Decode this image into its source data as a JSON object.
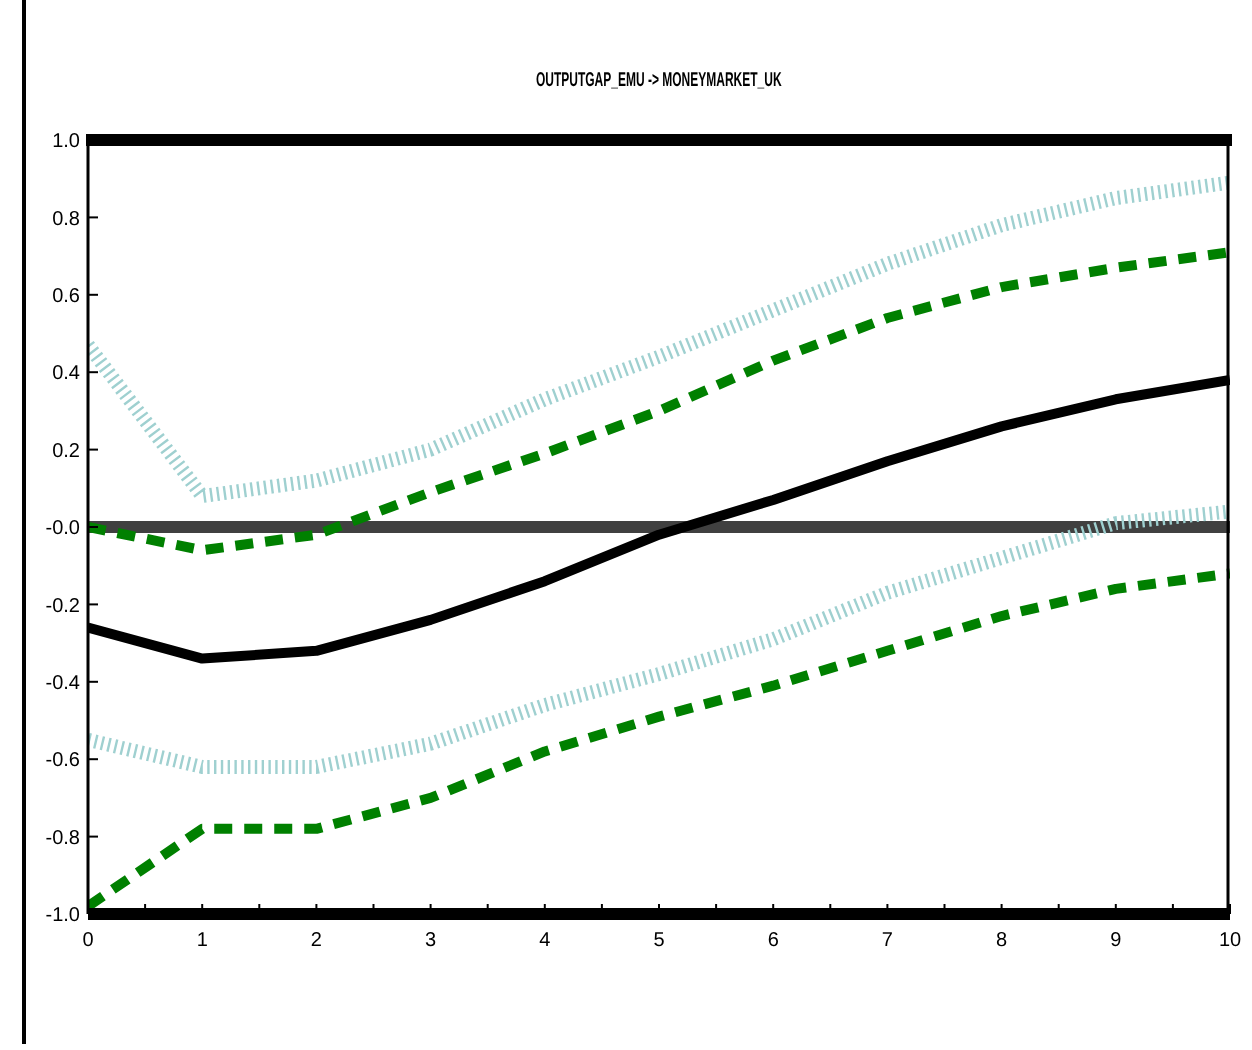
{
  "chart_data": {
    "type": "line",
    "title": "OUTPUTGAP_EMU -> MONEYMARKET_UK",
    "x": [
      0,
      1,
      2,
      3,
      4,
      5,
      6,
      7,
      8,
      9,
      10
    ],
    "series": [
      {
        "color": "#000000",
        "line_style": "solid",
        "values": [
          -0.26,
          -0.34,
          -0.32,
          -0.24,
          -0.14,
          -0.02,
          0.07,
          0.17,
          0.26,
          0.33,
          0.38
        ]
      },
      {
        "color": "#008000",
        "line_style": "dashed",
        "values": [
          0.0,
          -0.06,
          -0.02,
          0.09,
          0.19,
          0.3,
          0.43,
          0.54,
          0.62,
          0.67,
          0.71
        ]
      },
      {
        "color": "#008000",
        "line_style": "dashed",
        "values": [
          -0.98,
          -0.78,
          -0.78,
          -0.7,
          -0.58,
          -0.49,
          -0.41,
          -0.32,
          -0.23,
          -0.16,
          -0.12
        ]
      },
      {
        "color": "#9fd0d0",
        "line_style": "dotted",
        "values": [
          0.47,
          0.08,
          0.12,
          0.2,
          0.33,
          0.44,
          0.56,
          0.68,
          0.78,
          0.85,
          0.89
        ]
      },
      {
        "color": "#9fd0d0",
        "line_style": "dotted",
        "values": [
          -0.55,
          -0.62,
          -0.62,
          -0.56,
          -0.46,
          -0.38,
          -0.29,
          -0.17,
          -0.08,
          0.01,
          0.04
        ]
      }
    ],
    "xlim": [
      0,
      10
    ],
    "xticks": [
      0,
      {
        "value": 0.5,
        "label": null
      },
      1,
      {
        "value": 1.5,
        "label": null
      },
      2,
      {
        "value": 2.5,
        "label": null
      },
      3,
      {
        "value": 3.5,
        "label": null
      },
      4,
      {
        "value": 4.5,
        "label": null
      },
      5,
      {
        "value": 5.5,
        "label": null
      },
      6,
      {
        "value": 6.5,
        "label": null
      },
      7,
      {
        "value": 7.5,
        "label": null
      },
      8,
      {
        "value": 8.5,
        "label": null
      },
      9,
      {
        "value": 9.5,
        "label": null
      },
      10
    ],
    "ylim": [
      -1,
      1
    ],
    "yticks": [
      {
        "value": -1,
        "label": "-1.0"
      },
      {
        "value": -0.8,
        "label": "-0.8"
      },
      {
        "value": -0.6,
        "label": "-0.6"
      },
      {
        "value": -0.4,
        "label": "-0.4"
      },
      {
        "value": -0.2,
        "label": "-0.2"
      },
      {
        "value": 0,
        "label": "-0.0"
      },
      {
        "value": 0.2,
        "label": "0.2"
      },
      {
        "value": 0.4,
        "label": "0.4"
      },
      {
        "value": 0.6,
        "label": "0.6"
      },
      {
        "value": 0.8,
        "label": "0.8"
      },
      {
        "value": 1,
        "label": "1.0"
      }
    ],
    "marker": "none",
    "ref_lines": [
      {
        "axis": "y",
        "value": 0,
        "color": "#404040"
      }
    ]
  }
}
